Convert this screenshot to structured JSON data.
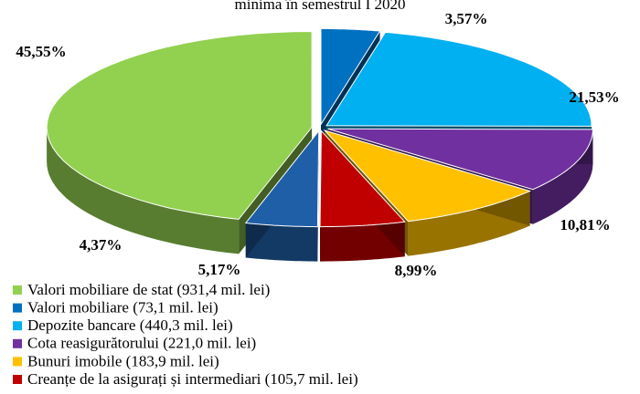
{
  "chart_data": {
    "type": "pie",
    "title": "minima în semestrul I 2020",
    "categories": [
      "Valori mobiliare de stat  (931,4 mil. lei)",
      "Valori mobiliare  (73,1 mil. lei)",
      "Depozite bancare (440,3 mil. lei)",
      "Cota reasigurătorului (221,0 mil. lei)",
      "Bunuri imobile (183,9 mil. lei)",
      "Creanțe de la asigurați și intermediari  (105,7 mil. lei)",
      null
    ],
    "values": [
      45.55,
      3.57,
      21.53,
      10.81,
      8.99,
      5.17,
      4.37
    ],
    "value_labels": [
      "45,55%",
      "3,57%",
      "21,53%",
      "10,81%",
      "8,99%",
      "5,17%",
      "4,37%"
    ],
    "colors": [
      "#92d050",
      "#0070c0",
      "#00b0f0",
      "#7030a0",
      "#ffc000",
      "#c00000",
      "#1f5fa8"
    ]
  }
}
